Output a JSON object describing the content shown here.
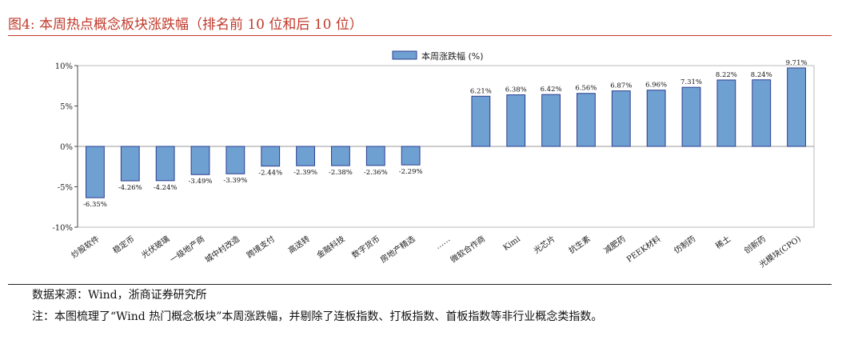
{
  "figure": {
    "title": "图4:  本周热点概念板块涨跌幅（排名前 10 位和后 10 位）",
    "source": "数据来源：Wind，浙商证券研究所",
    "note": "注：本图梳理了“Wind 热门概念板块”本周涨跌幅，并剔除了连板指数、打板指数、首板指数等非行业概念类指数。"
  },
  "chart_data": {
    "type": "bar",
    "legend": "本周涨跌幅 (%)",
    "legend_position": "top-center",
    "categories": [
      "炒股软件",
      "稳定币",
      "光伏玻璃",
      "一级地产商",
      "城中村改造",
      "跨境支付",
      "高送转",
      "金融科技",
      "数字货币",
      "房地产精选",
      "……",
      "微软合作商",
      "Kimi",
      "光芯片",
      "抗生素",
      "减肥药",
      "PEEK材料",
      "仿制药",
      "稀土",
      "创新药",
      "光模块(CPO)"
    ],
    "values": [
      -6.35,
      -4.26,
      -4.24,
      -3.49,
      -3.39,
      -2.44,
      -2.39,
      -2.38,
      -2.36,
      -2.29,
      null,
      6.21,
      6.38,
      6.42,
      6.56,
      6.87,
      6.96,
      7.31,
      8.22,
      8.24,
      9.71
    ],
    "labels": [
      "-6.35%",
      "-4.26%",
      "-4.24%",
      "-3.49%",
      "-3.39%",
      "-2.44%",
      "-2.39%",
      "-2.38%",
      "-2.36%",
      "-2.29%",
      "",
      "6.21%",
      "6.38%",
      "6.42%",
      "6.56%",
      "6.87%",
      "6.96%",
      "7.31%",
      "8.22%",
      "8.24%",
      "9.71%"
    ],
    "yticks": [
      "10%",
      "5%",
      "0%",
      "-5%",
      "-10%"
    ],
    "ytick_values": [
      10,
      5,
      0,
      -5,
      -10
    ],
    "ylim": [
      -10,
      10
    ],
    "bar_color": "#6fa0d2",
    "bar_edge": "#2a3d8f",
    "grid": false
  }
}
